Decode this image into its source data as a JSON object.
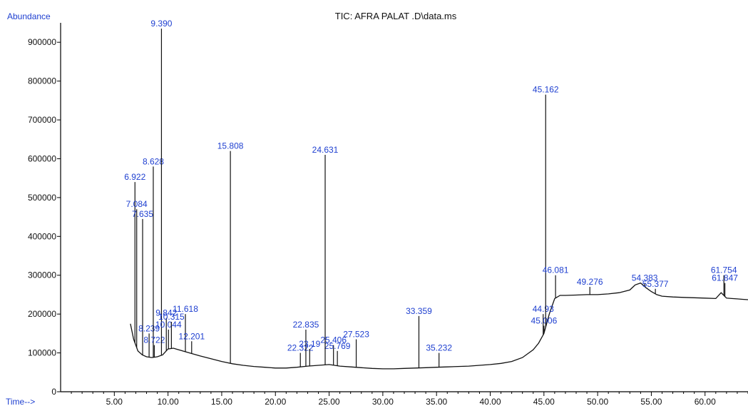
{
  "chart_data": {
    "type": "line",
    "title": "TIC: AFRA PALAT .D\\data.ms",
    "ylabel": "Abundance",
    "xlabel": "Time-->",
    "xlim": [
      0,
      64
    ],
    "ylim": [
      0,
      950000
    ],
    "x_ticks": [
      5,
      10,
      15,
      20,
      25,
      30,
      35,
      40,
      45,
      50,
      55,
      60
    ],
    "x_tick_labels": [
      "5.00",
      "10.00",
      "15.00",
      "20.00",
      "25.00",
      "30.00",
      "35.00",
      "40.00",
      "45.00",
      "50.00",
      "55.00",
      "60.00"
    ],
    "y_ticks": [
      0,
      100000,
      200000,
      300000,
      400000,
      500000,
      600000,
      700000,
      800000,
      900000
    ],
    "y_tick_labels": [
      "0",
      "100000",
      "200000",
      "300000",
      "400000",
      "500000",
      "600000",
      "700000",
      "800000",
      "900000"
    ],
    "grid": false,
    "series": [
      {
        "color": "#111111",
        "x": [
          6.5,
          6.8,
          7.2,
          7.6,
          8.0,
          8.5,
          9.0,
          9.5,
          10.0,
          10.5,
          11.0,
          12.0,
          13.0,
          14.0,
          15.0,
          16.0,
          17.0,
          18.0,
          19.0,
          20.0,
          21.0,
          22.0,
          23.0,
          24.0,
          25.0,
          26.0,
          27.0,
          28.0,
          29.0,
          30.0,
          31.0,
          32.0,
          33.0,
          34.0,
          35.0,
          36.0,
          37.0,
          38.0,
          39.0,
          40.0,
          41.0,
          42.0,
          43.0,
          44.0,
          44.5,
          45.0,
          45.5,
          46.0,
          46.5,
          47.0,
          48.0,
          49.0,
          50.0,
          51.0,
          52.0,
          53.0,
          53.5,
          54.0,
          54.5,
          55.0,
          55.5,
          56.0,
          57.0,
          58.0,
          59.0,
          60.0,
          61.0,
          61.5,
          62.0,
          62.5,
          63.0,
          63.5,
          64.0
        ],
        "y": [
          175000,
          135000,
          105000,
          95000,
          90000,
          88000,
          90000,
          95000,
          110000,
          112000,
          108000,
          100000,
          92000,
          85000,
          78000,
          72000,
          68000,
          65000,
          63000,
          61000,
          61000,
          63000,
          66000,
          68000,
          70000,
          66000,
          64000,
          62000,
          60000,
          59000,
          59000,
          60000,
          61000,
          62000,
          63000,
          64000,
          65000,
          66000,
          68000,
          70000,
          73000,
          78000,
          88000,
          108000,
          125000,
          150000,
          200000,
          240000,
          248000,
          248000,
          249000,
          250000,
          250000,
          252000,
          255000,
          262000,
          275000,
          280000,
          268000,
          258000,
          250000,
          246000,
          244000,
          243000,
          242000,
          241000,
          240000,
          255000,
          241000,
          240000,
          239000,
          238000,
          237000
        ]
      }
    ],
    "peaks": [
      {
        "x": 6.922,
        "y": 540000,
        "label": "6.922"
      },
      {
        "x": 7.084,
        "y": 470000,
        "label": "7.084"
      },
      {
        "x": 7.635,
        "y": 445000,
        "label": "7.635"
      },
      {
        "x": 8.239,
        "y": 150000,
        "label": "8.239"
      },
      {
        "x": 8.628,
        "y": 580000,
        "label": "8.628"
      },
      {
        "x": 8.722,
        "y": 120000,
        "label": "8.722"
      },
      {
        "x": 9.39,
        "y": 935000,
        "label": "9.390"
      },
      {
        "x": 9.842,
        "y": 190000,
        "label": "9.842"
      },
      {
        "x": 10.044,
        "y": 160000,
        "label": "10.044"
      },
      {
        "x": 10.315,
        "y": 180000,
        "label": "10.315"
      },
      {
        "x": 11.618,
        "y": 200000,
        "label": "11.618"
      },
      {
        "x": 12.201,
        "y": 130000,
        "label": "12.201"
      },
      {
        "x": 15.808,
        "y": 620000,
        "label": "15.808"
      },
      {
        "x": 22.322,
        "y": 100000,
        "label": "22.322"
      },
      {
        "x": 22.835,
        "y": 160000,
        "label": "22.835"
      },
      {
        "x": 23.19,
        "y": 110000,
        "label": "23.19"
      },
      {
        "x": 25.406,
        "y": 120000,
        "label": "25.406"
      },
      {
        "x": 25.769,
        "y": 105000,
        "label": "25.769"
      },
      {
        "x": 24.631,
        "y": 610000,
        "label": "24.631"
      },
      {
        "x": 27.523,
        "y": 135000,
        "label": "27.523"
      },
      {
        "x": 33.359,
        "y": 195000,
        "label": "33.359"
      },
      {
        "x": 35.232,
        "y": 100000,
        "label": "35.232"
      },
      {
        "x": 44.93,
        "y": 200000,
        "label": "44.93"
      },
      {
        "x": 45.006,
        "y": 170000,
        "label": "45.006"
      },
      {
        "x": 45.162,
        "y": 765000,
        "label": "45.162"
      },
      {
        "x": 46.081,
        "y": 300000,
        "label": "46.081"
      },
      {
        "x": 49.276,
        "y": 270000,
        "label": "49.276"
      },
      {
        "x": 54.383,
        "y": 280000,
        "label": "54.383"
      },
      {
        "x": 55.377,
        "y": 265000,
        "label": "55.377"
      },
      {
        "x": 61.754,
        "y": 300000,
        "label": "61.754"
      },
      {
        "x": 61.847,
        "y": 280000,
        "label": "61.847"
      }
    ]
  }
}
